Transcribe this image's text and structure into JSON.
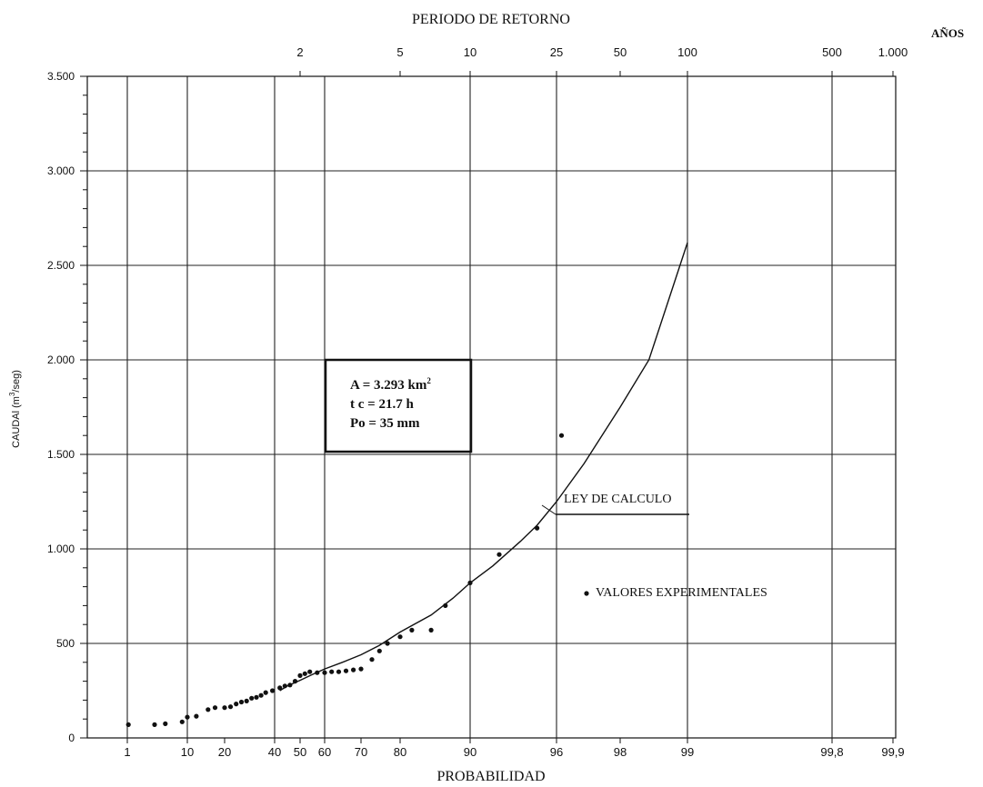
{
  "chart_data": {
    "type": "scatter",
    "title": "PERIODO DE RETORNO",
    "top_axis": {
      "unit_label": "AÑOS",
      "ticks": [
        {
          "label": "2",
          "probability": 50
        },
        {
          "label": "5",
          "probability": 80
        },
        {
          "label": "10",
          "probability": 90
        },
        {
          "label": "25",
          "probability": 96
        },
        {
          "label": "50",
          "probability": 98
        },
        {
          "label": "100",
          "probability": 99
        },
        {
          "label": "500",
          "probability": 99.8
        },
        {
          "label": "1.000",
          "probability": 99.9
        }
      ]
    },
    "xlabel": "PROBABILIDAD",
    "ylabel_text": "CAUDAl (m",
    "ylabel_sup": "3",
    "ylabel_tail": "/seg)",
    "x_scale": "normal-probability",
    "x_ticks": [
      {
        "label": "1",
        "value": 1
      },
      {
        "label": "10",
        "value": 10
      },
      {
        "label": "20",
        "value": 20
      },
      {
        "label": "40",
        "value": 40
      },
      {
        "label": "50",
        "value": 50
      },
      {
        "label": "60",
        "value": 60
      },
      {
        "label": "70",
        "value": 70
      },
      {
        "label": "80",
        "value": 80
      },
      {
        "label": "90",
        "value": 90
      },
      {
        "label": "96",
        "value": 96
      },
      {
        "label": "98",
        "value": 98
      },
      {
        "label": "99",
        "value": 99
      },
      {
        "label": "99,8",
        "value": 99.8
      },
      {
        "label": "99,9",
        "value": 99.9
      }
    ],
    "y_ticks": [
      {
        "label": "0",
        "value": 0
      },
      {
        "label": "500",
        "value": 500
      },
      {
        "label": "1.000",
        "value": 1000
      },
      {
        "label": "1.500",
        "value": 1500
      },
      {
        "label": "2.000",
        "value": 2000
      },
      {
        "label": "2.500",
        "value": 2500
      },
      {
        "label": "3.000",
        "value": 3000
      },
      {
        "label": "3.500",
        "value": 3500
      }
    ],
    "ylim": [
      0,
      3500
    ],
    "grid": true,
    "info_box": {
      "line1": "A = 3.293 km",
      "line1_sup": "2",
      "line2": "t c = 21.7 h",
      "line3": "Po = 35 mm"
    },
    "series": [
      {
        "name": "VALORES EXPERIMENTALES",
        "kind": "points",
        "points": [
          [
            1.05,
            70
          ],
          [
            3.2,
            70
          ],
          [
            4.8,
            75
          ],
          [
            8.5,
            85
          ],
          [
            10,
            110
          ],
          [
            12,
            115
          ],
          [
            15,
            150
          ],
          [
            17,
            160
          ],
          [
            20,
            160
          ],
          [
            22,
            165
          ],
          [
            24,
            180
          ],
          [
            26,
            190
          ],
          [
            28,
            195
          ],
          [
            30,
            210
          ],
          [
            32,
            215
          ],
          [
            34,
            225
          ],
          [
            36,
            240
          ],
          [
            39,
            250
          ],
          [
            42,
            265
          ],
          [
            44,
            275
          ],
          [
            46,
            280
          ],
          [
            48,
            300
          ],
          [
            50,
            330
          ],
          [
            52,
            340
          ],
          [
            54,
            350
          ],
          [
            57,
            345
          ],
          [
            60,
            345
          ],
          [
            62,
            350
          ],
          [
            64,
            350
          ],
          [
            66,
            355
          ],
          [
            68,
            360
          ],
          [
            70,
            365
          ],
          [
            73,
            415
          ],
          [
            75,
            460
          ],
          [
            77,
            500
          ],
          [
            80,
            535
          ],
          [
            82,
            570
          ],
          [
            85,
            570
          ],
          [
            87,
            700
          ],
          [
            90,
            820
          ],
          [
            92.5,
            970
          ],
          [
            95,
            1110
          ],
          [
            96.2,
            1600
          ]
        ]
      },
      {
        "name": "LEY DE CALCULO",
        "kind": "line",
        "points": [
          [
            42,
            250
          ],
          [
            45,
            275
          ],
          [
            50,
            305
          ],
          [
            55,
            335
          ],
          [
            60,
            365
          ],
          [
            65,
            400
          ],
          [
            70,
            440
          ],
          [
            75,
            490
          ],
          [
            80,
            560
          ],
          [
            85,
            650
          ],
          [
            88,
            740
          ],
          [
            90,
            820
          ],
          [
            92,
            910
          ],
          [
            94,
            1040
          ],
          [
            95,
            1125
          ],
          [
            96,
            1250
          ],
          [
            97,
            1450
          ],
          [
            98,
            1750
          ],
          [
            98.5,
            2000
          ],
          [
            99,
            2620
          ]
        ]
      }
    ]
  }
}
